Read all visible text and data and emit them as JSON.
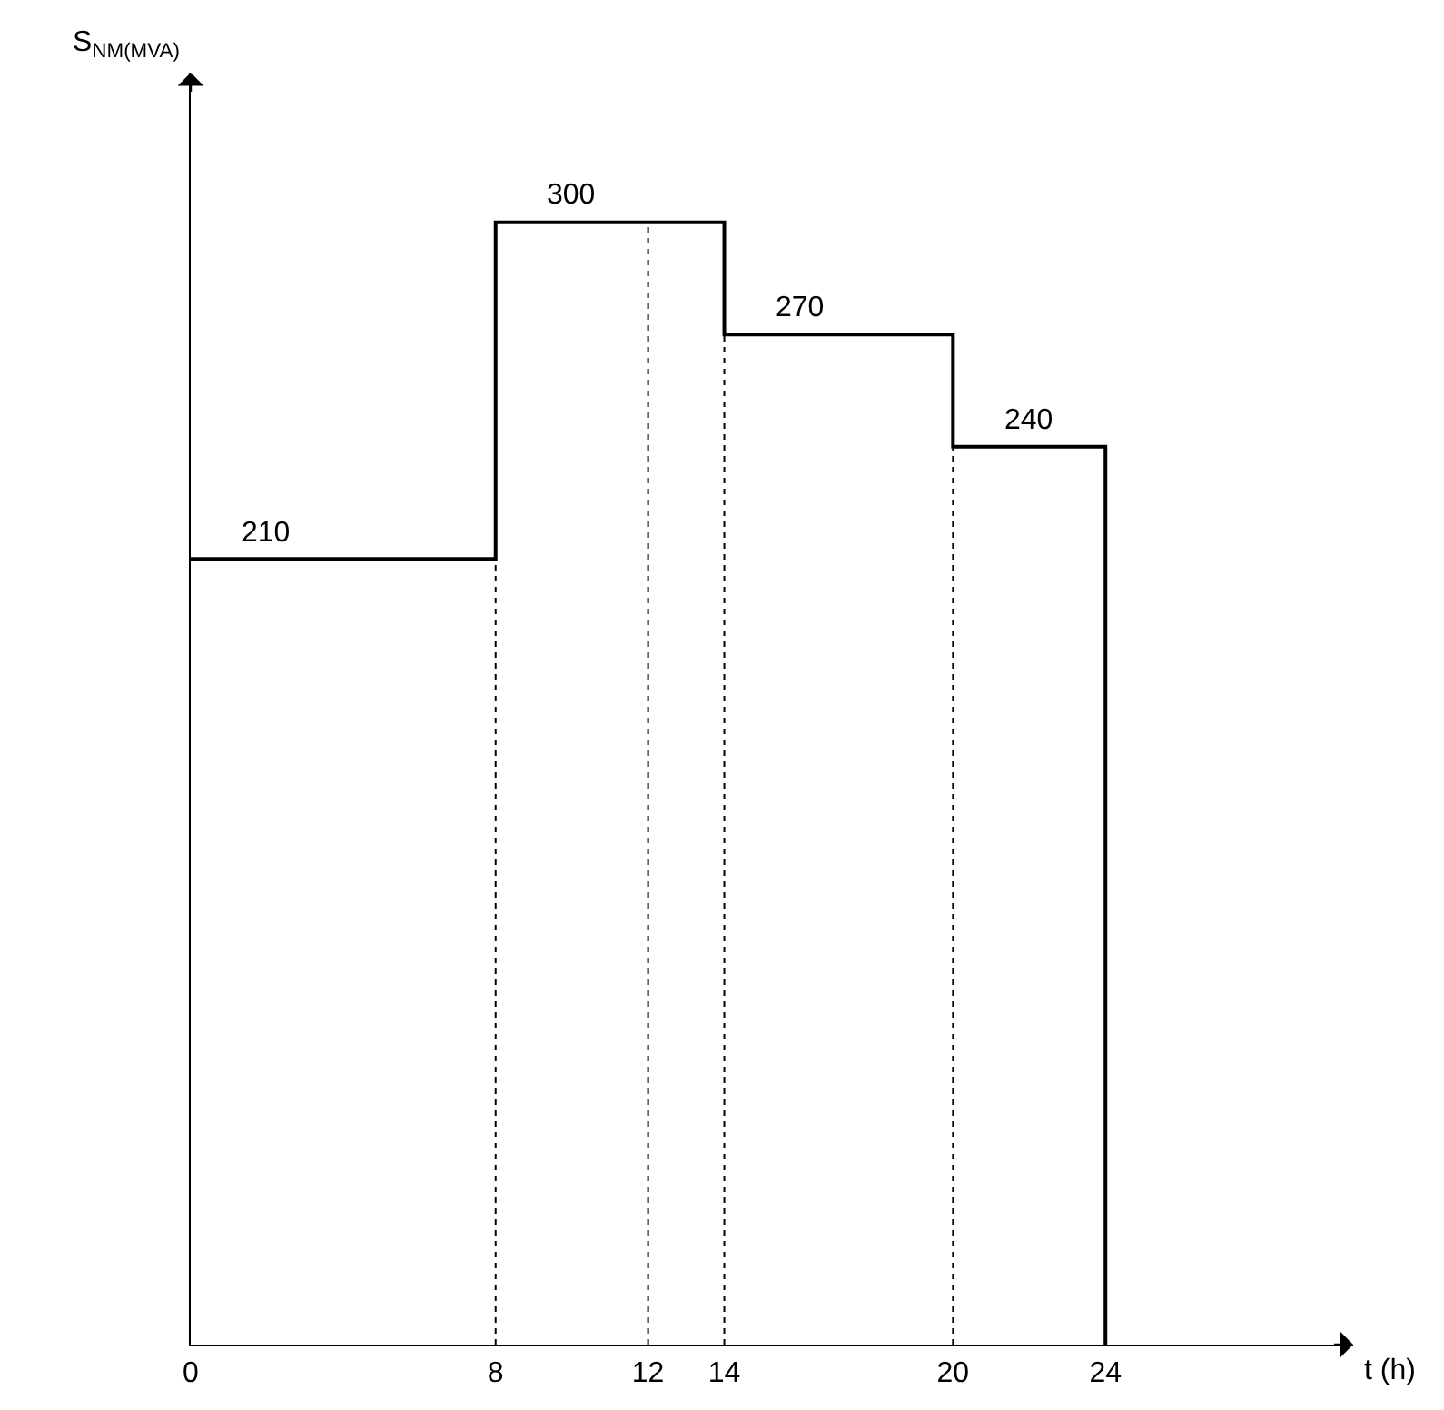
{
  "chart_data": {
    "type": "step",
    "x": [
      0,
      8,
      14,
      20,
      24
    ],
    "series": [
      {
        "color": "#000000",
        "values": [
          210,
          300,
          270,
          240,
          0
        ],
        "value_labels": [
          "210",
          "300",
          "270",
          "240",
          null
        ]
      }
    ],
    "xlim": [
      0,
      30.5
    ],
    "xticks": [
      0,
      8,
      12,
      14,
      20,
      24
    ],
    "ylim": [
      0,
      340
    ],
    "xlabel": "t (h)",
    "ylabel": "S$_{NM(MVA)}$",
    "tick_labels": "x",
    "ref_lines": [
      {
        "axis": "x",
        "value": 8,
        "line_style": "dotted",
        "color": "#000000"
      },
      {
        "axis": "x",
        "value": 12,
        "line_style": "dotted",
        "color": "#000000"
      },
      {
        "axis": "x",
        "value": 14,
        "line_style": "dotted",
        "color": "#000000"
      },
      {
        "axis": "x",
        "value": 20,
        "line_style": "dotted",
        "color": "#000000"
      }
    ],
    "marker": "none",
    "line_style": "solid"
  }
}
